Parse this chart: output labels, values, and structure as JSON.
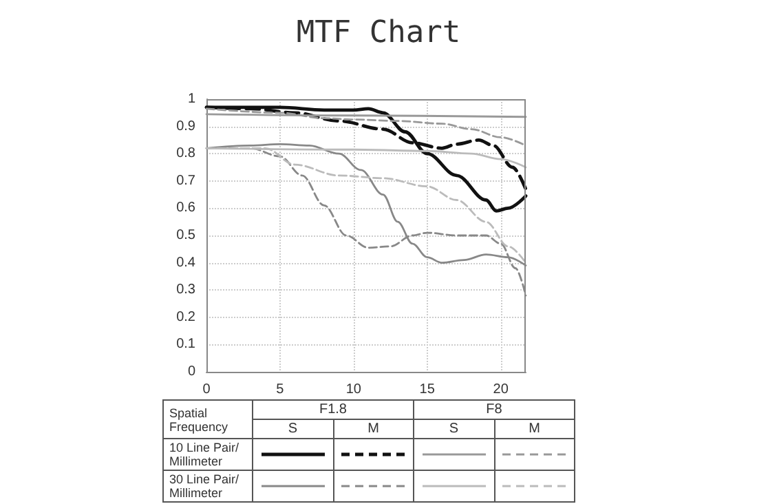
{
  "chart_data": {
    "type": "line",
    "title": "MTF Chart",
    "xlim": [
      0,
      21.7
    ],
    "xticks": [
      0,
      5,
      10,
      15,
      20
    ],
    "ylim": [
      0,
      1
    ],
    "yticks": [
      0,
      0.1,
      0.2,
      0.3,
      0.4,
      0.5,
      0.6,
      0.7,
      0.8,
      0.9,
      1
    ],
    "grid": true,
    "marker": "none",
    "annotations": [
      "Spatial Frequency",
      "F1.8",
      "F8",
      "S",
      "M",
      "S",
      "M",
      "10 Line Pair/ Millimeter",
      "30 Line Pair/ Millimeter"
    ],
    "series": [
      {
        "color": "#111111",
        "line_style": "solid",
        "x": [
          0,
          3,
          5,
          8,
          10,
          11,
          12,
          13.5,
          15,
          17,
          19,
          19.7,
          20.5,
          21.7
        ],
        "values": [
          0.97,
          0.97,
          0.97,
          0.96,
          0.96,
          0.965,
          0.95,
          0.88,
          0.8,
          0.72,
          0.63,
          0.59,
          0.6,
          0.645
        ]
      },
      {
        "color": "#111111",
        "line_style": "dashed",
        "x": [
          0,
          3,
          6,
          9,
          12,
          14,
          16,
          17,
          18.5,
          19.5,
          20.8,
          21.7
        ],
        "values": [
          0.97,
          0.965,
          0.95,
          0.92,
          0.89,
          0.84,
          0.82,
          0.835,
          0.85,
          0.83,
          0.75,
          0.67
        ]
      },
      {
        "color": "#999999",
        "line_style": "solid",
        "x": [
          0,
          10,
          21.7
        ],
        "values": [
          0.945,
          0.94,
          0.935
        ]
      },
      {
        "color": "#999999",
        "line_style": "dashed",
        "x": [
          0,
          5,
          8,
          10,
          13,
          16,
          18,
          20,
          21.7
        ],
        "values": [
          0.965,
          0.95,
          0.93,
          0.925,
          0.92,
          0.91,
          0.89,
          0.86,
          0.83
        ]
      },
      {
        "color": "#888888",
        "line_style": "solid",
        "x": [
          0,
          3,
          5,
          7,
          9,
          10.5,
          12,
          13,
          14,
          15,
          16,
          17.5,
          19,
          20.5,
          21.7
        ],
        "values": [
          0.82,
          0.83,
          0.835,
          0.83,
          0.8,
          0.74,
          0.65,
          0.55,
          0.47,
          0.42,
          0.4,
          0.41,
          0.43,
          0.42,
          0.39
        ]
      },
      {
        "color": "#888888",
        "line_style": "dashed",
        "x": [
          0,
          3,
          5,
          6.5,
          8,
          9.5,
          11,
          12.5,
          14,
          15,
          17,
          19,
          20,
          21,
          21.7
        ],
        "values": [
          0.82,
          0.82,
          0.79,
          0.72,
          0.61,
          0.5,
          0.455,
          0.46,
          0.5,
          0.51,
          0.5,
          0.5,
          0.47,
          0.38,
          0.28
        ]
      },
      {
        "color": "#bbbbbb",
        "line_style": "solid",
        "x": [
          0,
          10,
          15,
          18,
          20,
          21.7
        ],
        "values": [
          0.82,
          0.815,
          0.81,
          0.8,
          0.78,
          0.75
        ]
      },
      {
        "color": "#bbbbbb",
        "line_style": "dashed",
        "x": [
          0,
          4,
          6,
          9,
          12,
          15,
          17,
          19,
          20.5,
          21.7
        ],
        "values": [
          0.82,
          0.82,
          0.76,
          0.72,
          0.71,
          0.68,
          0.63,
          0.55,
          0.46,
          0.4
        ]
      }
    ]
  }
}
